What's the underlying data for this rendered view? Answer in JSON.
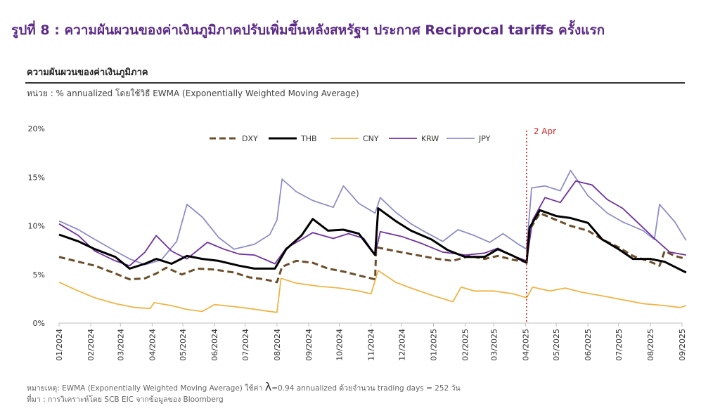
{
  "figure_title": "รูปที่ 8 : ความผันผวนของค่าเงินภูมิภาคปรับเพิ่มขึ้นหลังสหรัฐฯ ประกาศ Reciprocal tariffs ครั้งแรก",
  "chart_title": "ความผันผวนของค่าเงินภูมิภาค",
  "unit_note": "หน่วย : % annualized โดยใช้วิธี EWMA (Exponentially Weighted Moving Average)",
  "footnote_1_prefix": "หมายเหตุ: EWMA (Exponentially Weighted Moving Average) ใช้ค่า",
  "footnote_1_lambda": "λ",
  "footnote_1_suffix": "=0.94 annualized ด้วยจำนวน trading days = 252 วัน",
  "footnote_2": "ที่มา : การวิเคราะห์โดย SCB EIC จากข้อมูลของ Bloomberg",
  "colors": {
    "DXY": "#6b4f2a",
    "THB": "#000000",
    "CNY": "#f0b445",
    "KRW": "#7030a0",
    "JPY": "#8e8ec8",
    "annotation": "#d62728"
  },
  "chart_data": {
    "type": "line",
    "title": "ความผันผวนของค่าเงินภูมิภาค",
    "xlabel": "",
    "ylabel": "",
    "ylim": [
      0,
      20
    ],
    "y_ticks": [
      "0%",
      "5%",
      "10%",
      "15%",
      "20%"
    ],
    "x_ticks": [
      "01/2024",
      "02/2024",
      "03/2024",
      "04/2024",
      "05/2024",
      "06/2024",
      "07/2024",
      "08/2024",
      "09/2024",
      "10/2024",
      "11/2024",
      "12/2024",
      "01/2025",
      "02/2025",
      "03/2025",
      "04/2025",
      "05/2025",
      "06/2025",
      "07/2025",
      "08/2025",
      "09/2025"
    ],
    "x_range": [
      "01/2024",
      "09/2025"
    ],
    "grid": false,
    "legend": "top",
    "series": [
      {
        "name": "DXY",
        "style": "dashed",
        "values": [
          [
            "2024-01-01",
            6.8
          ],
          [
            "2024-01-20",
            6.3
          ],
          [
            "2024-02-05",
            5.9
          ],
          [
            "2024-02-25",
            5.1
          ],
          [
            "2024-03-10",
            4.5
          ],
          [
            "2024-03-25",
            4.6
          ],
          [
            "2024-04-05",
            5.1
          ],
          [
            "2024-04-15",
            5.7
          ],
          [
            "2024-04-30",
            5.0
          ],
          [
            "2024-05-15",
            5.6
          ],
          [
            "2024-06-01",
            5.5
          ],
          [
            "2024-06-20",
            5.2
          ],
          [
            "2024-07-05",
            4.7
          ],
          [
            "2024-07-20",
            4.5
          ],
          [
            "2024-08-01",
            4.2
          ],
          [
            "2024-08-06",
            5.8
          ],
          [
            "2024-08-20",
            6.4
          ],
          [
            "2024-09-05",
            6.2
          ],
          [
            "2024-09-20",
            5.6
          ],
          [
            "2024-10-05",
            5.3
          ],
          [
            "2024-10-20",
            4.9
          ],
          [
            "2024-11-05",
            4.5
          ],
          [
            "2024-11-06",
            7.8
          ],
          [
            "2024-11-20",
            7.5
          ],
          [
            "2024-12-05",
            7.2
          ],
          [
            "2024-12-20",
            6.9
          ],
          [
            "2025-01-05",
            6.6
          ],
          [
            "2025-01-20",
            6.4
          ],
          [
            "2025-02-05",
            6.9
          ],
          [
            "2025-02-20",
            6.6
          ],
          [
            "2025-03-05",
            6.9
          ],
          [
            "2025-03-20",
            6.5
          ],
          [
            "2025-04-02",
            6.3
          ],
          [
            "2025-04-05",
            9.6
          ],
          [
            "2025-04-15",
            11.3
          ],
          [
            "2025-05-01",
            10.6
          ],
          [
            "2025-05-15",
            10.0
          ],
          [
            "2025-06-01",
            9.5
          ],
          [
            "2025-06-15",
            8.6
          ],
          [
            "2025-07-01",
            7.8
          ],
          [
            "2025-07-15",
            6.9
          ],
          [
            "2025-08-01",
            6.3
          ],
          [
            "2025-08-10",
            5.9
          ],
          [
            "2025-08-15",
            7.4
          ],
          [
            "2025-08-25",
            6.9
          ],
          [
            "2025-09-05",
            6.6
          ]
        ]
      },
      {
        "name": "THB",
        "style": "solid",
        "values": [
          [
            "2024-01-01",
            9.1
          ],
          [
            "2024-01-20",
            8.4
          ],
          [
            "2024-02-05",
            7.6
          ],
          [
            "2024-02-25",
            6.8
          ],
          [
            "2024-03-10",
            5.6
          ],
          [
            "2024-03-25",
            6.1
          ],
          [
            "2024-04-05",
            6.6
          ],
          [
            "2024-04-20",
            6.1
          ],
          [
            "2024-05-05",
            6.9
          ],
          [
            "2024-05-20",
            6.6
          ],
          [
            "2024-06-05",
            6.4
          ],
          [
            "2024-06-25",
            5.9
          ],
          [
            "2024-07-10",
            5.6
          ],
          [
            "2024-07-30",
            5.6
          ],
          [
            "2024-08-10",
            7.6
          ],
          [
            "2024-08-25",
            9.0
          ],
          [
            "2024-09-05",
            10.7
          ],
          [
            "2024-09-20",
            9.5
          ],
          [
            "2024-10-05",
            9.6
          ],
          [
            "2024-10-20",
            9.2
          ],
          [
            "2024-11-05",
            7.0
          ],
          [
            "2024-11-08",
            11.8
          ],
          [
            "2024-11-25",
            10.5
          ],
          [
            "2024-12-10",
            9.5
          ],
          [
            "2024-12-30",
            8.6
          ],
          [
            "2025-01-15",
            7.5
          ],
          [
            "2025-02-01",
            6.8
          ],
          [
            "2025-02-20",
            6.8
          ],
          [
            "2025-03-05",
            7.6
          ],
          [
            "2025-03-20",
            6.9
          ],
          [
            "2025-04-02",
            6.2
          ],
          [
            "2025-04-05",
            9.8
          ],
          [
            "2025-04-15",
            11.6
          ],
          [
            "2025-05-01",
            11.0
          ],
          [
            "2025-05-15",
            10.8
          ],
          [
            "2025-06-01",
            10.3
          ],
          [
            "2025-06-15",
            8.6
          ],
          [
            "2025-07-01",
            7.6
          ],
          [
            "2025-07-15",
            6.6
          ],
          [
            "2025-08-01",
            6.6
          ],
          [
            "2025-08-15",
            6.3
          ],
          [
            "2025-09-05",
            5.2
          ]
        ]
      },
      {
        "name": "CNY",
        "style": "solid",
        "values": [
          [
            "2024-01-01",
            4.2
          ],
          [
            "2024-01-20",
            3.3
          ],
          [
            "2024-02-05",
            2.6
          ],
          [
            "2024-02-25",
            2.0
          ],
          [
            "2024-03-15",
            1.6
          ],
          [
            "2024-03-30",
            1.5
          ],
          [
            "2024-04-03",
            2.1
          ],
          [
            "2024-04-20",
            1.8
          ],
          [
            "2024-05-05",
            1.4
          ],
          [
            "2024-05-20",
            1.2
          ],
          [
            "2024-06-01",
            1.9
          ],
          [
            "2024-06-20",
            1.7
          ],
          [
            "2024-07-05",
            1.5
          ],
          [
            "2024-07-25",
            1.2
          ],
          [
            "2024-08-01",
            1.1
          ],
          [
            "2024-08-05",
            4.6
          ],
          [
            "2024-08-20",
            4.1
          ],
          [
            "2024-09-10",
            3.8
          ],
          [
            "2024-10-01",
            3.6
          ],
          [
            "2024-10-20",
            3.3
          ],
          [
            "2024-11-01",
            3.0
          ],
          [
            "2024-11-08",
            5.4
          ],
          [
            "2024-11-25",
            4.2
          ],
          [
            "2024-12-10",
            3.6
          ],
          [
            "2025-01-01",
            2.8
          ],
          [
            "2025-01-20",
            2.2
          ],
          [
            "2025-01-28",
            3.7
          ],
          [
            "2025-02-10",
            3.3
          ],
          [
            "2025-03-01",
            3.3
          ],
          [
            "2025-03-20",
            3.0
          ],
          [
            "2025-04-02",
            2.6
          ],
          [
            "2025-04-08",
            3.7
          ],
          [
            "2025-04-25",
            3.3
          ],
          [
            "2025-05-10",
            3.6
          ],
          [
            "2025-05-25",
            3.2
          ],
          [
            "2025-06-15",
            2.8
          ],
          [
            "2025-07-05",
            2.4
          ],
          [
            "2025-07-25",
            2.0
          ],
          [
            "2025-08-15",
            1.8
          ],
          [
            "2025-08-30",
            1.6
          ],
          [
            "2025-09-05",
            1.8
          ]
        ]
      },
      {
        "name": "KRW",
        "style": "solid",
        "values": [
          [
            "2024-01-01",
            10.2
          ],
          [
            "2024-01-20",
            9.0
          ],
          [
            "2024-02-05",
            7.4
          ],
          [
            "2024-02-25",
            6.4
          ],
          [
            "2024-03-10",
            5.9
          ],
          [
            "2024-03-25",
            7.3
          ],
          [
            "2024-04-05",
            9.0
          ],
          [
            "2024-04-20",
            7.4
          ],
          [
            "2024-05-05",
            6.6
          ],
          [
            "2024-05-25",
            8.3
          ],
          [
            "2024-06-10",
            7.6
          ],
          [
            "2024-06-25",
            7.1
          ],
          [
            "2024-07-10",
            7.0
          ],
          [
            "2024-07-30",
            6.1
          ],
          [
            "2024-08-10",
            7.7
          ],
          [
            "2024-08-25",
            8.6
          ],
          [
            "2024-09-05",
            9.3
          ],
          [
            "2024-09-25",
            8.7
          ],
          [
            "2024-10-10",
            9.2
          ],
          [
            "2024-10-25",
            8.7
          ],
          [
            "2024-11-05",
            7.0
          ],
          [
            "2024-11-10",
            9.4
          ],
          [
            "2024-12-01",
            8.9
          ],
          [
            "2024-12-20",
            8.2
          ],
          [
            "2025-01-10",
            7.3
          ],
          [
            "2025-02-01",
            7.0
          ],
          [
            "2025-02-20",
            7.2
          ],
          [
            "2025-03-05",
            7.7
          ],
          [
            "2025-03-20",
            6.9
          ],
          [
            "2025-04-02",
            6.4
          ],
          [
            "2025-04-08",
            10.6
          ],
          [
            "2025-04-20",
            12.9
          ],
          [
            "2025-05-05",
            12.4
          ],
          [
            "2025-05-20",
            14.6
          ],
          [
            "2025-06-05",
            14.2
          ],
          [
            "2025-06-20",
            12.7
          ],
          [
            "2025-07-05",
            11.8
          ],
          [
            "2025-07-20",
            10.3
          ],
          [
            "2025-08-05",
            8.7
          ],
          [
            "2025-08-20",
            7.3
          ],
          [
            "2025-09-05",
            7.0
          ]
        ]
      },
      {
        "name": "JPY",
        "style": "solid",
        "values": [
          [
            "2024-01-01",
            10.5
          ],
          [
            "2024-01-20",
            9.6
          ],
          [
            "2024-02-05",
            8.6
          ],
          [
            "2024-02-25",
            7.4
          ],
          [
            "2024-03-10",
            6.6
          ],
          [
            "2024-03-25",
            6.0
          ],
          [
            "2024-04-10",
            6.5
          ],
          [
            "2024-04-25",
            8.4
          ],
          [
            "2024-05-05",
            12.2
          ],
          [
            "2024-05-20",
            10.9
          ],
          [
            "2024-06-05",
            8.8
          ],
          [
            "2024-06-20",
            7.6
          ],
          [
            "2024-07-10",
            8.1
          ],
          [
            "2024-07-25",
            9.1
          ],
          [
            "2024-08-01",
            10.6
          ],
          [
            "2024-08-06",
            14.8
          ],
          [
            "2024-08-20",
            13.5
          ],
          [
            "2024-09-05",
            12.6
          ],
          [
            "2024-09-25",
            11.9
          ],
          [
            "2024-10-05",
            14.1
          ],
          [
            "2024-10-20",
            12.3
          ],
          [
            "2024-11-05",
            11.3
          ],
          [
            "2024-11-10",
            12.9
          ],
          [
            "2024-11-25",
            11.4
          ],
          [
            "2024-12-10",
            10.2
          ],
          [
            "2024-12-25",
            9.3
          ],
          [
            "2025-01-10",
            8.4
          ],
          [
            "2025-01-25",
            9.6
          ],
          [
            "2025-02-10",
            9.0
          ],
          [
            "2025-02-25",
            8.3
          ],
          [
            "2025-03-10",
            9.2
          ],
          [
            "2025-03-25",
            8.1
          ],
          [
            "2025-04-02",
            7.6
          ],
          [
            "2025-04-07",
            13.9
          ],
          [
            "2025-04-20",
            14.1
          ],
          [
            "2025-05-05",
            13.6
          ],
          [
            "2025-05-15",
            15.7
          ],
          [
            "2025-06-01",
            13.1
          ],
          [
            "2025-06-20",
            11.3
          ],
          [
            "2025-07-05",
            10.4
          ],
          [
            "2025-07-25",
            9.5
          ],
          [
            "2025-08-05",
            8.6
          ],
          [
            "2025-08-10",
            12.2
          ],
          [
            "2025-08-25",
            10.4
          ],
          [
            "2025-09-05",
            8.5
          ]
        ]
      }
    ],
    "annotations": [
      {
        "date": "2025-04-02",
        "label": "2 Apr"
      }
    ]
  }
}
